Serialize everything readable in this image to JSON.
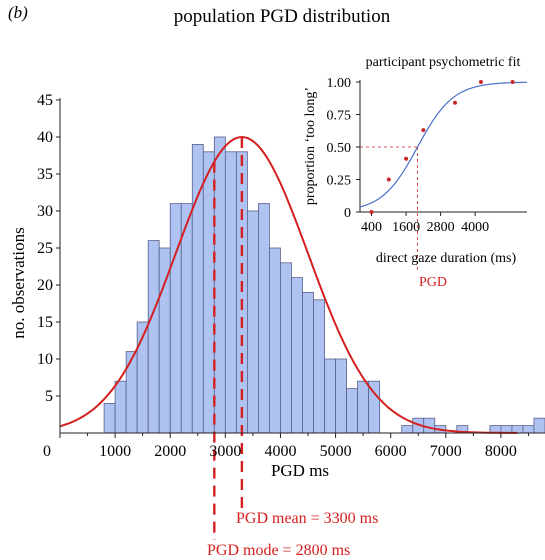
{
  "panel_label": "(b)",
  "title": "population PGD distribution",
  "colors": {
    "bar_fill": "#aec3f2",
    "bar_stroke": "#5a5f8a",
    "curve": "#d42020",
    "annotation": "#d42020",
    "fit_line": "#4a6fc7",
    "fit_points": "#c62828",
    "axis": "#222222"
  },
  "annotations": {
    "mean_label": "PGD mean = 3300 ms",
    "mode_label": "PGD mode = 2800 ms",
    "pgd_label": "PGD"
  },
  "chart_data": [
    {
      "type": "bar",
      "title": "population PGD distribution",
      "xlabel": "PGD ms",
      "ylabel": "no. observations",
      "xlim": [
        0,
        8800
      ],
      "ylim": [
        0,
        45
      ],
      "xticks": [
        0,
        1000,
        2000,
        3000,
        4000,
        5000,
        6000,
        7000,
        8000
      ],
      "xtick_labels": [
        "0",
        "1000",
        "2000",
        "3000",
        "4000",
        "5000",
        "6000",
        "7000",
        "8000"
      ],
      "yticks": [
        5,
        10,
        15,
        20,
        25,
        30,
        35,
        40,
        45
      ],
      "bin_width": 200,
      "bins": [
        {
          "x0": 800,
          "value": 4
        },
        {
          "x0": 1000,
          "value": 7
        },
        {
          "x0": 1200,
          "value": 11
        },
        {
          "x0": 1400,
          "value": 15
        },
        {
          "x0": 1600,
          "value": 26
        },
        {
          "x0": 1800,
          "value": 25
        },
        {
          "x0": 2000,
          "value": 31
        },
        {
          "x0": 2200,
          "value": 31
        },
        {
          "x0": 2400,
          "value": 39
        },
        {
          "x0": 2600,
          "value": 38
        },
        {
          "x0": 2800,
          "value": 40
        },
        {
          "x0": 3000,
          "value": 38
        },
        {
          "x0": 3200,
          "value": 38
        },
        {
          "x0": 3400,
          "value": 30
        },
        {
          "x0": 3600,
          "value": 31
        },
        {
          "x0": 3800,
          "value": 25
        },
        {
          "x0": 4000,
          "value": 23
        },
        {
          "x0": 4200,
          "value": 21
        },
        {
          "x0": 4400,
          "value": 19
        },
        {
          "x0": 4600,
          "value": 18
        },
        {
          "x0": 4800,
          "value": 10
        },
        {
          "x0": 5000,
          "value": 10
        },
        {
          "x0": 5200,
          "value": 6
        },
        {
          "x0": 5400,
          "value": 7
        },
        {
          "x0": 5600,
          "value": 7
        },
        {
          "x0": 6200,
          "value": 1
        },
        {
          "x0": 6400,
          "value": 2
        },
        {
          "x0": 6600,
          "value": 2
        },
        {
          "x0": 6800,
          "value": 1
        },
        {
          "x0": 7200,
          "value": 1
        },
        {
          "x0": 7800,
          "value": 1
        },
        {
          "x0": 8000,
          "value": 1
        },
        {
          "x0": 8200,
          "value": 1
        },
        {
          "x0": 8400,
          "value": 1
        },
        {
          "x0": 8600,
          "value": 2
        }
      ],
      "normal_fit": {
        "mean": 3300,
        "sd": 1200,
        "peak": 40
      },
      "mean": 3300,
      "mode": 2800
    },
    {
      "type": "scatter",
      "title": "participant psychometric fit",
      "xlabel": "direct gaze duration (ms)",
      "ylabel": "proportion ‘too long’",
      "xlim": [
        0,
        5800
      ],
      "ylim": [
        0,
        1
      ],
      "xticks": [
        400,
        1600,
        2800,
        4000
      ],
      "xtick_labels": [
        "400",
        "1600",
        "2800",
        "4000"
      ],
      "yticks": [
        0,
        0.25,
        0.5,
        0.75,
        1.0
      ],
      "ytick_labels": [
        "0",
        "0.25",
        "0.50",
        "0.75",
        "1.00"
      ],
      "points": [
        {
          "x": 400,
          "y": 0.0
        },
        {
          "x": 1000,
          "y": 0.25
        },
        {
          "x": 1600,
          "y": 0.41
        },
        {
          "x": 2200,
          "y": 0.63
        },
        {
          "x": 3300,
          "y": 0.84
        },
        {
          "x": 4200,
          "y": 1.0
        },
        {
          "x": 5300,
          "y": 1.0
        }
      ],
      "fit": {
        "type": "logistic",
        "midpoint": 2000,
        "scale": 620
      },
      "pgd_x": 2000,
      "pgd_y": 0.5
    }
  ]
}
